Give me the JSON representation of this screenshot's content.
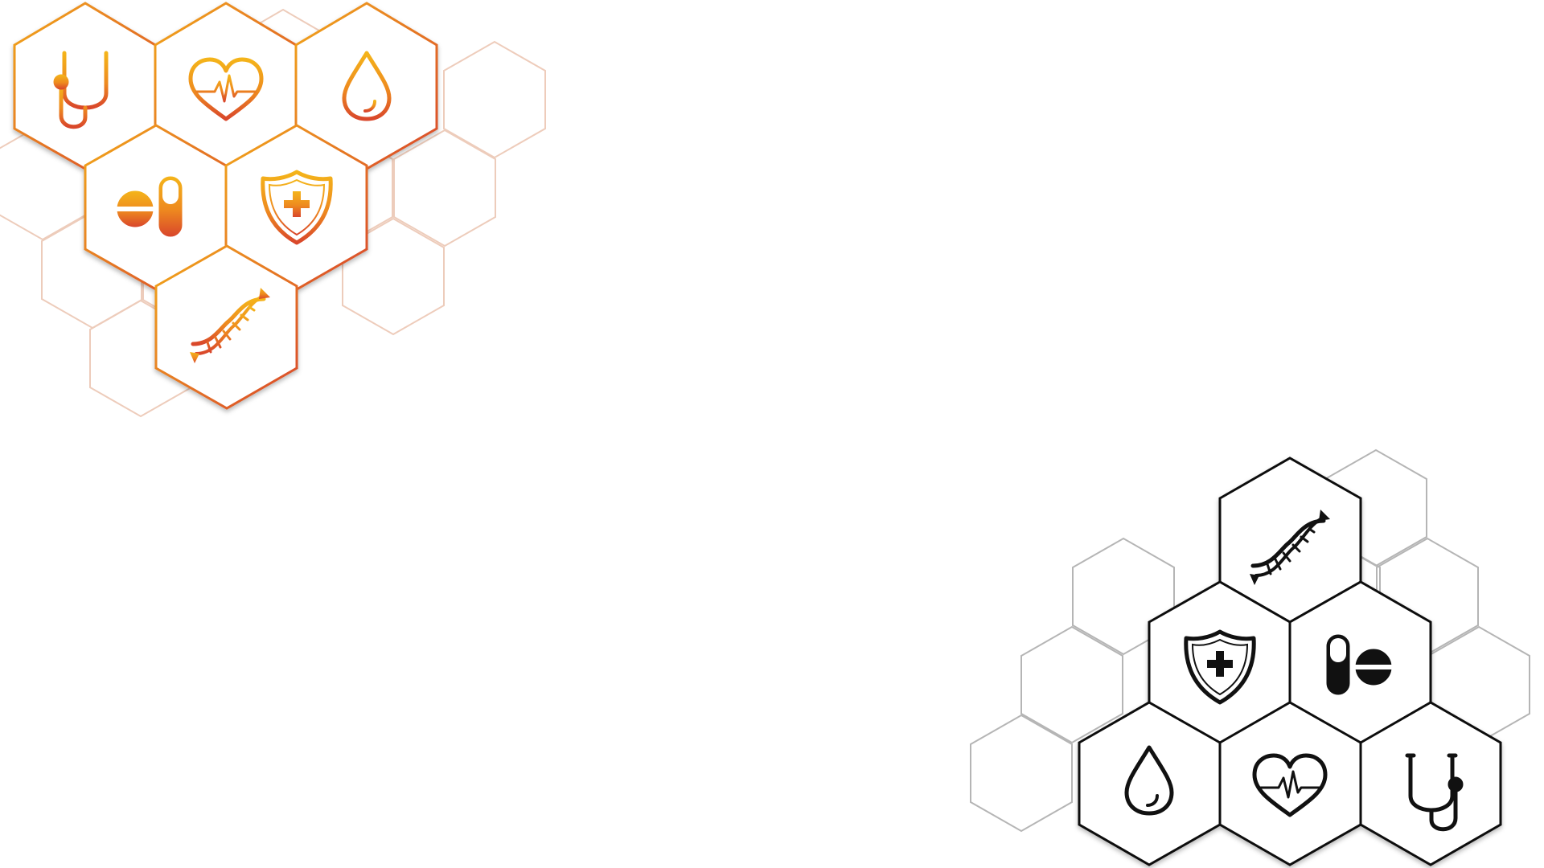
{
  "theme": {
    "background": "#ffffff",
    "warm_gradient": [
      "#f4b41a",
      "#ee8a1f",
      "#d9472b"
    ],
    "outline_dark": "#111111",
    "outline_light_warm": "#ecc7b4",
    "outline_light_gray": "#b5b5b5"
  },
  "decoration": {
    "top_left_cluster": {
      "style": "warm-gradient",
      "icons": [
        "stethoscope-icon",
        "heart-pulse-icon",
        "blood-drop-icon",
        "pills-icon",
        "shield-cross-icon",
        "dna-icon"
      ]
    },
    "bottom_right_cluster": {
      "style": "dark-outline",
      "icons": [
        "dna-icon",
        "shield-cross-icon",
        "pills-icon",
        "blood-drop-icon",
        "heart-pulse-icon",
        "stethoscope-icon"
      ]
    }
  }
}
